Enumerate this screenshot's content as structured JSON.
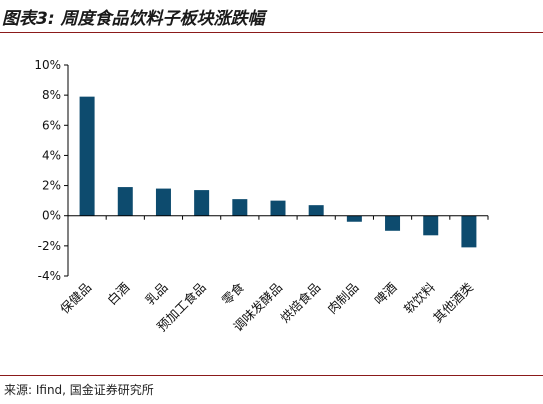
{
  "header": {
    "title": "图表3: 周度食品饮料子板块涨跌幅"
  },
  "footer": {
    "source": "来源: Ifind, 国金证券研究所"
  },
  "colors": {
    "bar": "#0d4b6e",
    "rule": "#8b1a1a"
  },
  "chart_data": {
    "type": "bar",
    "title": "",
    "xlabel": "",
    "ylabel": "",
    "ylim": [
      -4,
      10
    ],
    "yticks": [
      -4,
      -2,
      0,
      2,
      4,
      6,
      8,
      10
    ],
    "ytick_labels": [
      "-4%",
      "-2%",
      "0%",
      "2%",
      "4%",
      "6%",
      "8%",
      "10%"
    ],
    "grid": false,
    "categories": [
      "保健品",
      "白酒",
      "乳品",
      "预加工食品",
      "零食",
      "调味发酵品",
      "烘焙食品",
      "肉制品",
      "啤酒",
      "软饮料",
      "其他酒类"
    ],
    "values": [
      7.9,
      1.9,
      1.8,
      1.7,
      1.1,
      1.0,
      0.7,
      -0.4,
      -1.0,
      -1.3,
      -2.1
    ]
  }
}
